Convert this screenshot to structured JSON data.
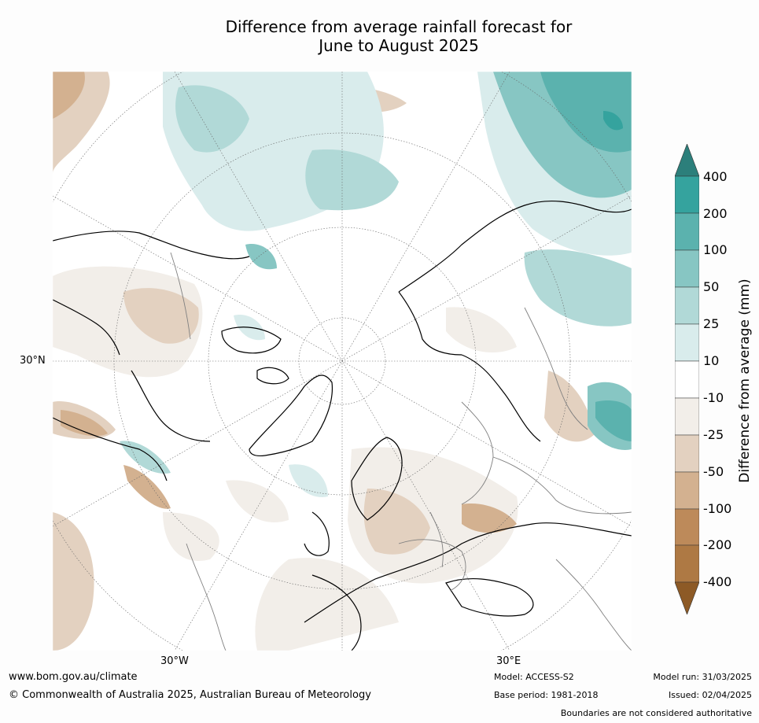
{
  "title": {
    "line1": "Difference from average rainfall forecast for",
    "line2": "June to August 2025"
  },
  "map": {
    "lon_labels": [
      "30°W",
      "30°E"
    ],
    "lat_labels": [
      "30°N"
    ],
    "legend": {
      "title": "Difference from average (mm)",
      "ticks": [
        "400",
        "200",
        "100",
        "50",
        "25",
        "10",
        "-10",
        "-25",
        "-50",
        "-100",
        "-200",
        "-400"
      ],
      "colors": {
        "above_400": "#2c7f7b",
        "200_400": "#35a39e",
        "100_200": "#5bb2ae",
        "50_100": "#87c6c3",
        "25_50": "#b1d9d7",
        "10_25": "#d9ecec",
        "neutral": "#ffffff",
        "m10_m25": "#f2eee9",
        "m25_m50": "#e3d1c0",
        "m50_m100": "#d3b190",
        "m100_m200": "#bd8a5a",
        "m200_m400": "#ae7944",
        "below_m400": "#8d5a26"
      }
    }
  },
  "footer": {
    "url": "www.bom.gov.au/climate",
    "copyright": "© Commonwealth of Australia 2025, Australian Bureau of Meteorology",
    "model": "Model: ACCESS-S2",
    "base_period": "Base period: 1981-2018",
    "model_run": "Model run: 31/03/2025",
    "issued": "Issued: 02/04/2025",
    "disclaimer": "Boundaries are not considered authoritative"
  }
}
